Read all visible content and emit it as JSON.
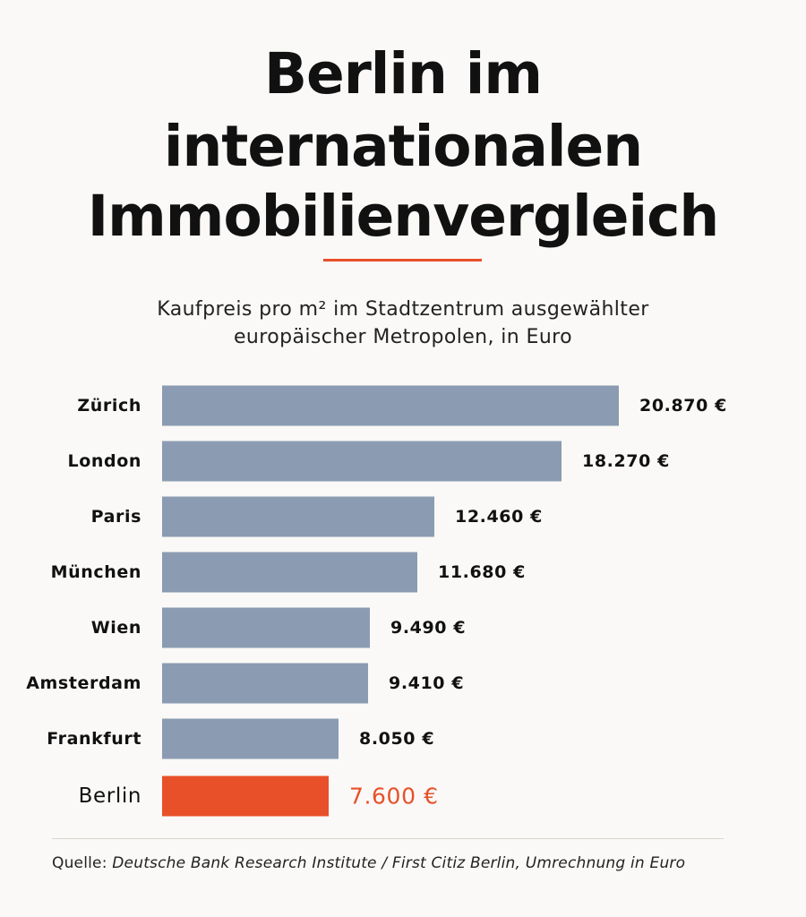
{
  "title_lines": [
    "Berlin im",
    "internationalen",
    "Immobilienvergleich"
  ],
  "subtitle_lines": [
    "Kaufpreis pro m² im Stadtzentrum ausgewählter",
    "europäischer Metropolen, in Euro"
  ],
  "source": {
    "label": "Quelle:",
    "text": "Deutsche Bank Research Institute / First Citiz Berlin, Umrechnung in Euro"
  },
  "colors": {
    "bar": "#8b9cb2",
    "highlight": "#e8502a",
    "accent_rule": "#e8502a",
    "text": "#111111"
  },
  "chart_data": {
    "type": "bar",
    "orientation": "horizontal",
    "categories": [
      "Zürich",
      "London",
      "Paris",
      "München",
      "Wien",
      "Amsterdam",
      "Frankfurt",
      "Berlin"
    ],
    "values": [
      20870,
      18270,
      12460,
      11680,
      9490,
      9410,
      8050,
      7600
    ],
    "value_labels": [
      "20.870 €",
      "18.270 €",
      "12.460 €",
      "11.680 €",
      "9.490 €",
      "9.410 €",
      "8.050 €",
      "7.600 €"
    ],
    "highlight_category": "Berlin",
    "title": "Berlin im internationalen Immobilienvergleich",
    "subtitle": "Kaufpreis pro m² im Stadtzentrum ausgewählter europäischer Metropolen, in Euro",
    "unit": "€",
    "grid": false,
    "legend": "none"
  }
}
